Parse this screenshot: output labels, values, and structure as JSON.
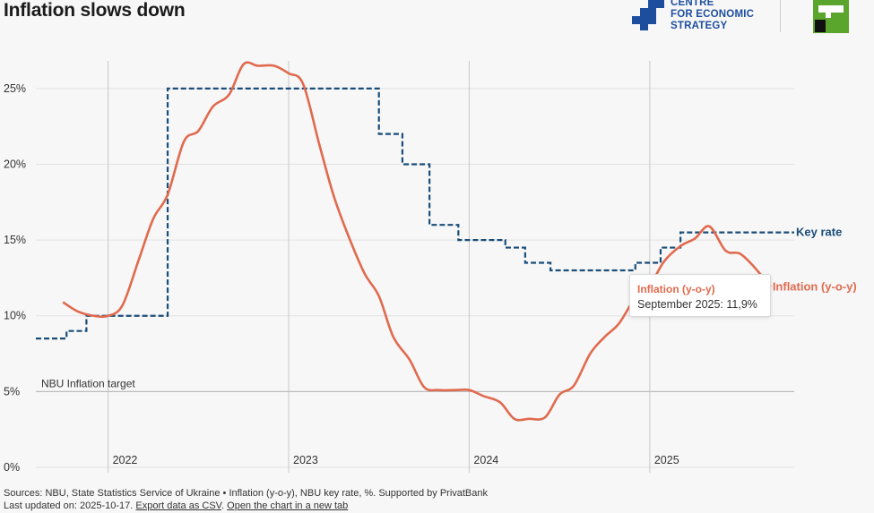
{
  "header": {
    "title": "Inflation slows down",
    "logo_lines": [
      "CENTRE",
      "FOR ECONOMIC",
      "STRATEGY"
    ]
  },
  "footer": {
    "sources": "Sources: NBU, State Statistics Service of Ukraine • Inflation (y-o-y), NBU key rate, %. Supported by PrivatBank",
    "updated_prefix": "Last updated on: 2025-10-17.",
    "export_link": "Export data as CSV",
    "open_link": "Open the chart in a new tab"
  },
  "tooltip": {
    "series": "Inflation (y-o-y)",
    "value_text": "September 2025: 11,9%"
  },
  "colors": {
    "inflation": "#e06a4e",
    "key_rate": "#1a4d7a",
    "grid": "#e2e2e2",
    "year_line": "#c8c8c8",
    "target_line": "#bdbdbd",
    "axis_text": "#333333"
  },
  "chart_data": {
    "type": "line",
    "title": "Inflation slows down",
    "x_range": [
      2021.6,
      2025.8
    ],
    "ylim": [
      0,
      27
    ],
    "y_ticks": [
      0,
      5,
      10,
      15,
      20,
      25
    ],
    "y_tick_labels": [
      "0%",
      "5%",
      "10%",
      "15%",
      "20%",
      "25%"
    ],
    "year_ticks": [
      2022,
      2023,
      2024,
      2025
    ],
    "year_labels": [
      "2022",
      "2023",
      "2024",
      "2025"
    ],
    "target": {
      "value": 5,
      "label": "NBU Inflation target"
    },
    "series": [
      {
        "name": "Inflation (y-o-y)",
        "label": "Inflation (y-o-y)",
        "style": "solid",
        "points": [
          [
            2021.75,
            10.9
          ],
          [
            2021.83,
            10.3
          ],
          [
            2021.92,
            10.0
          ],
          [
            2022.0,
            10.0
          ],
          [
            2022.08,
            10.7
          ],
          [
            2022.17,
            13.7
          ],
          [
            2022.25,
            16.4
          ],
          [
            2022.33,
            18.0
          ],
          [
            2022.42,
            21.5
          ],
          [
            2022.5,
            22.2
          ],
          [
            2022.58,
            23.8
          ],
          [
            2022.67,
            24.6
          ],
          [
            2022.75,
            26.6
          ],
          [
            2022.83,
            26.5
          ],
          [
            2022.92,
            26.5
          ],
          [
            2023.0,
            26.0
          ],
          [
            2023.08,
            25.3
          ],
          [
            2023.17,
            21.3
          ],
          [
            2023.25,
            17.9
          ],
          [
            2023.33,
            15.3
          ],
          [
            2023.42,
            12.8
          ],
          [
            2023.5,
            11.3
          ],
          [
            2023.58,
            8.6
          ],
          [
            2023.67,
            7.1
          ],
          [
            2023.75,
            5.3
          ],
          [
            2023.83,
            5.1
          ],
          [
            2023.92,
            5.1
          ],
          [
            2024.0,
            5.1
          ],
          [
            2024.08,
            4.7
          ],
          [
            2024.17,
            4.3
          ],
          [
            2024.25,
            3.2
          ],
          [
            2024.33,
            3.2
          ],
          [
            2024.42,
            3.3
          ],
          [
            2024.5,
            4.8
          ],
          [
            2024.58,
            5.4
          ],
          [
            2024.67,
            7.5
          ],
          [
            2024.75,
            8.6
          ],
          [
            2024.83,
            9.5
          ],
          [
            2024.92,
            11.2
          ],
          [
            2025.0,
            12.0
          ],
          [
            2025.08,
            13.6
          ],
          [
            2025.17,
            14.6
          ],
          [
            2025.25,
            15.1
          ],
          [
            2025.33,
            15.9
          ],
          [
            2025.42,
            14.3
          ],
          [
            2025.5,
            14.1
          ],
          [
            2025.58,
            13.2
          ],
          [
            2025.67,
            11.9
          ]
        ]
      },
      {
        "name": "Key rate",
        "label": "Key rate",
        "style": "dashed-step",
        "points": [
          [
            2021.6,
            8.5
          ],
          [
            2021.77,
            9.0
          ],
          [
            2021.88,
            10.0
          ],
          [
            2022.33,
            25.0
          ],
          [
            2023.5,
            22.0
          ],
          [
            2023.63,
            20.0
          ],
          [
            2023.78,
            16.0
          ],
          [
            2023.94,
            15.0
          ],
          [
            2024.2,
            14.5
          ],
          [
            2024.31,
            13.5
          ],
          [
            2024.45,
            13.0
          ],
          [
            2024.92,
            13.5
          ],
          [
            2025.06,
            14.5
          ],
          [
            2025.17,
            15.5
          ],
          [
            2025.8,
            15.5
          ]
        ]
      }
    ]
  }
}
